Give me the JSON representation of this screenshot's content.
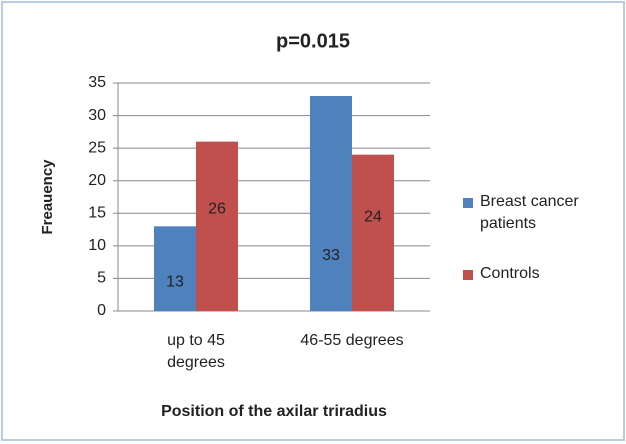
{
  "chart_data": {
    "type": "bar",
    "title": "p=0.015",
    "x_label": "Position of the axilar triradius",
    "y_label": "Freauency",
    "categories": [
      "up to 45 degrees",
      "46-55 degrees"
    ],
    "series": [
      {
        "name": "Breast cancer patients",
        "color": "#4f81bd",
        "values": [
          13,
          33
        ]
      },
      {
        "name": "Controls",
        "color": "#c0504d",
        "values": [
          26,
          24
        ]
      }
    ],
    "ylim": [
      0,
      35
    ],
    "yticks": [
      0,
      5,
      10,
      15,
      20,
      25,
      30,
      35
    ],
    "grid": true,
    "legend": "right"
  }
}
